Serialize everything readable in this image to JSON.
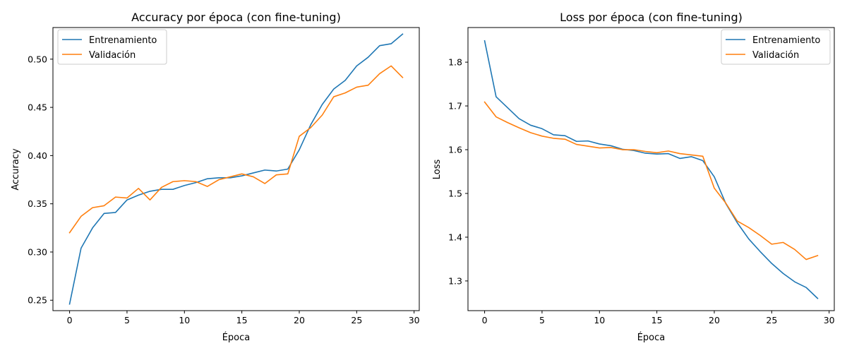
{
  "chart_data": [
    {
      "type": "line",
      "title": "Accuracy por época (con fine-tuning)",
      "xlabel": "Época",
      "ylabel": "Accuracy",
      "xlim": [
        -1.45,
        30.45
      ],
      "ylim": [
        0.2392,
        0.5328
      ],
      "xticks": [
        0,
        5,
        10,
        15,
        20,
        25,
        30
      ],
      "yticks": [
        0.25,
        0.3,
        0.35,
        0.4,
        0.45,
        0.5
      ],
      "ytick_labels": [
        "0.25",
        "0.30",
        "0.35",
        "0.40",
        "0.45",
        "0.50"
      ],
      "legend_position": "top-left",
      "grid": false,
      "x": [
        0,
        1,
        2,
        3,
        4,
        5,
        6,
        7,
        8,
        9,
        10,
        11,
        12,
        13,
        14,
        15,
        16,
        17,
        18,
        19,
        20,
        21,
        22,
        23,
        24,
        25,
        26,
        27,
        28,
        29
      ],
      "series": [
        {
          "name": "Entrenamiento",
          "color": "#1f77b4",
          "values": [
            0.246,
            0.304,
            0.325,
            0.34,
            0.341,
            0.354,
            0.359,
            0.363,
            0.365,
            0.365,
            0.369,
            0.372,
            0.376,
            0.377,
            0.377,
            0.379,
            0.382,
            0.385,
            0.384,
            0.386,
            0.406,
            0.432,
            0.453,
            0.469,
            0.478,
            0.493,
            0.502,
            0.514,
            0.516,
            0.526
          ]
        },
        {
          "name": "Validación",
          "color": "#ff7f0e",
          "values": [
            0.32,
            0.337,
            0.346,
            0.348,
            0.357,
            0.356,
            0.366,
            0.354,
            0.367,
            0.373,
            0.374,
            0.373,
            0.368,
            0.375,
            0.378,
            0.381,
            0.378,
            0.371,
            0.38,
            0.381,
            0.42,
            0.429,
            0.442,
            0.461,
            0.465,
            0.471,
            0.473,
            0.485,
            0.493,
            0.481
          ]
        }
      ]
    },
    {
      "type": "line",
      "title": "Loss por época (con fine-tuning)",
      "xlabel": "Época",
      "ylabel": "Loss",
      "xlim": [
        -1.45,
        30.45
      ],
      "ylim": [
        1.2321,
        1.8792
      ],
      "xticks": [
        0,
        5,
        10,
        15,
        20,
        25,
        30
      ],
      "yticks": [
        1.3,
        1.4,
        1.5,
        1.6,
        1.7,
        1.8
      ],
      "ytick_labels": [
        "1.3",
        "1.4",
        "1.5",
        "1.6",
        "1.7",
        "1.8"
      ],
      "legend_position": "top-right",
      "grid": false,
      "x": [
        0,
        1,
        2,
        3,
        4,
        5,
        6,
        7,
        8,
        9,
        10,
        11,
        12,
        13,
        14,
        15,
        16,
        17,
        18,
        19,
        20,
        21,
        22,
        23,
        24,
        25,
        26,
        27,
        28,
        29
      ],
      "series": [
        {
          "name": "Entrenamiento",
          "color": "#1f77b4",
          "values": [
            1.849,
            1.721,
            1.696,
            1.671,
            1.656,
            1.648,
            1.634,
            1.632,
            1.619,
            1.62,
            1.613,
            1.609,
            1.601,
            1.598,
            1.592,
            1.59,
            1.591,
            1.58,
            1.584,
            1.575,
            1.538,
            1.477,
            1.433,
            1.396,
            1.367,
            1.34,
            1.317,
            1.298,
            1.285,
            1.26
          ]
        },
        {
          "name": "Validación",
          "color": "#ff7f0e",
          "values": [
            1.709,
            1.675,
            1.662,
            1.65,
            1.639,
            1.631,
            1.626,
            1.624,
            1.612,
            1.608,
            1.604,
            1.605,
            1.6,
            1.6,
            1.596,
            1.593,
            1.597,
            1.591,
            1.588,
            1.585,
            1.512,
            1.478,
            1.437,
            1.422,
            1.404,
            1.384,
            1.388,
            1.372,
            1.349,
            1.358
          ]
        }
      ]
    }
  ]
}
